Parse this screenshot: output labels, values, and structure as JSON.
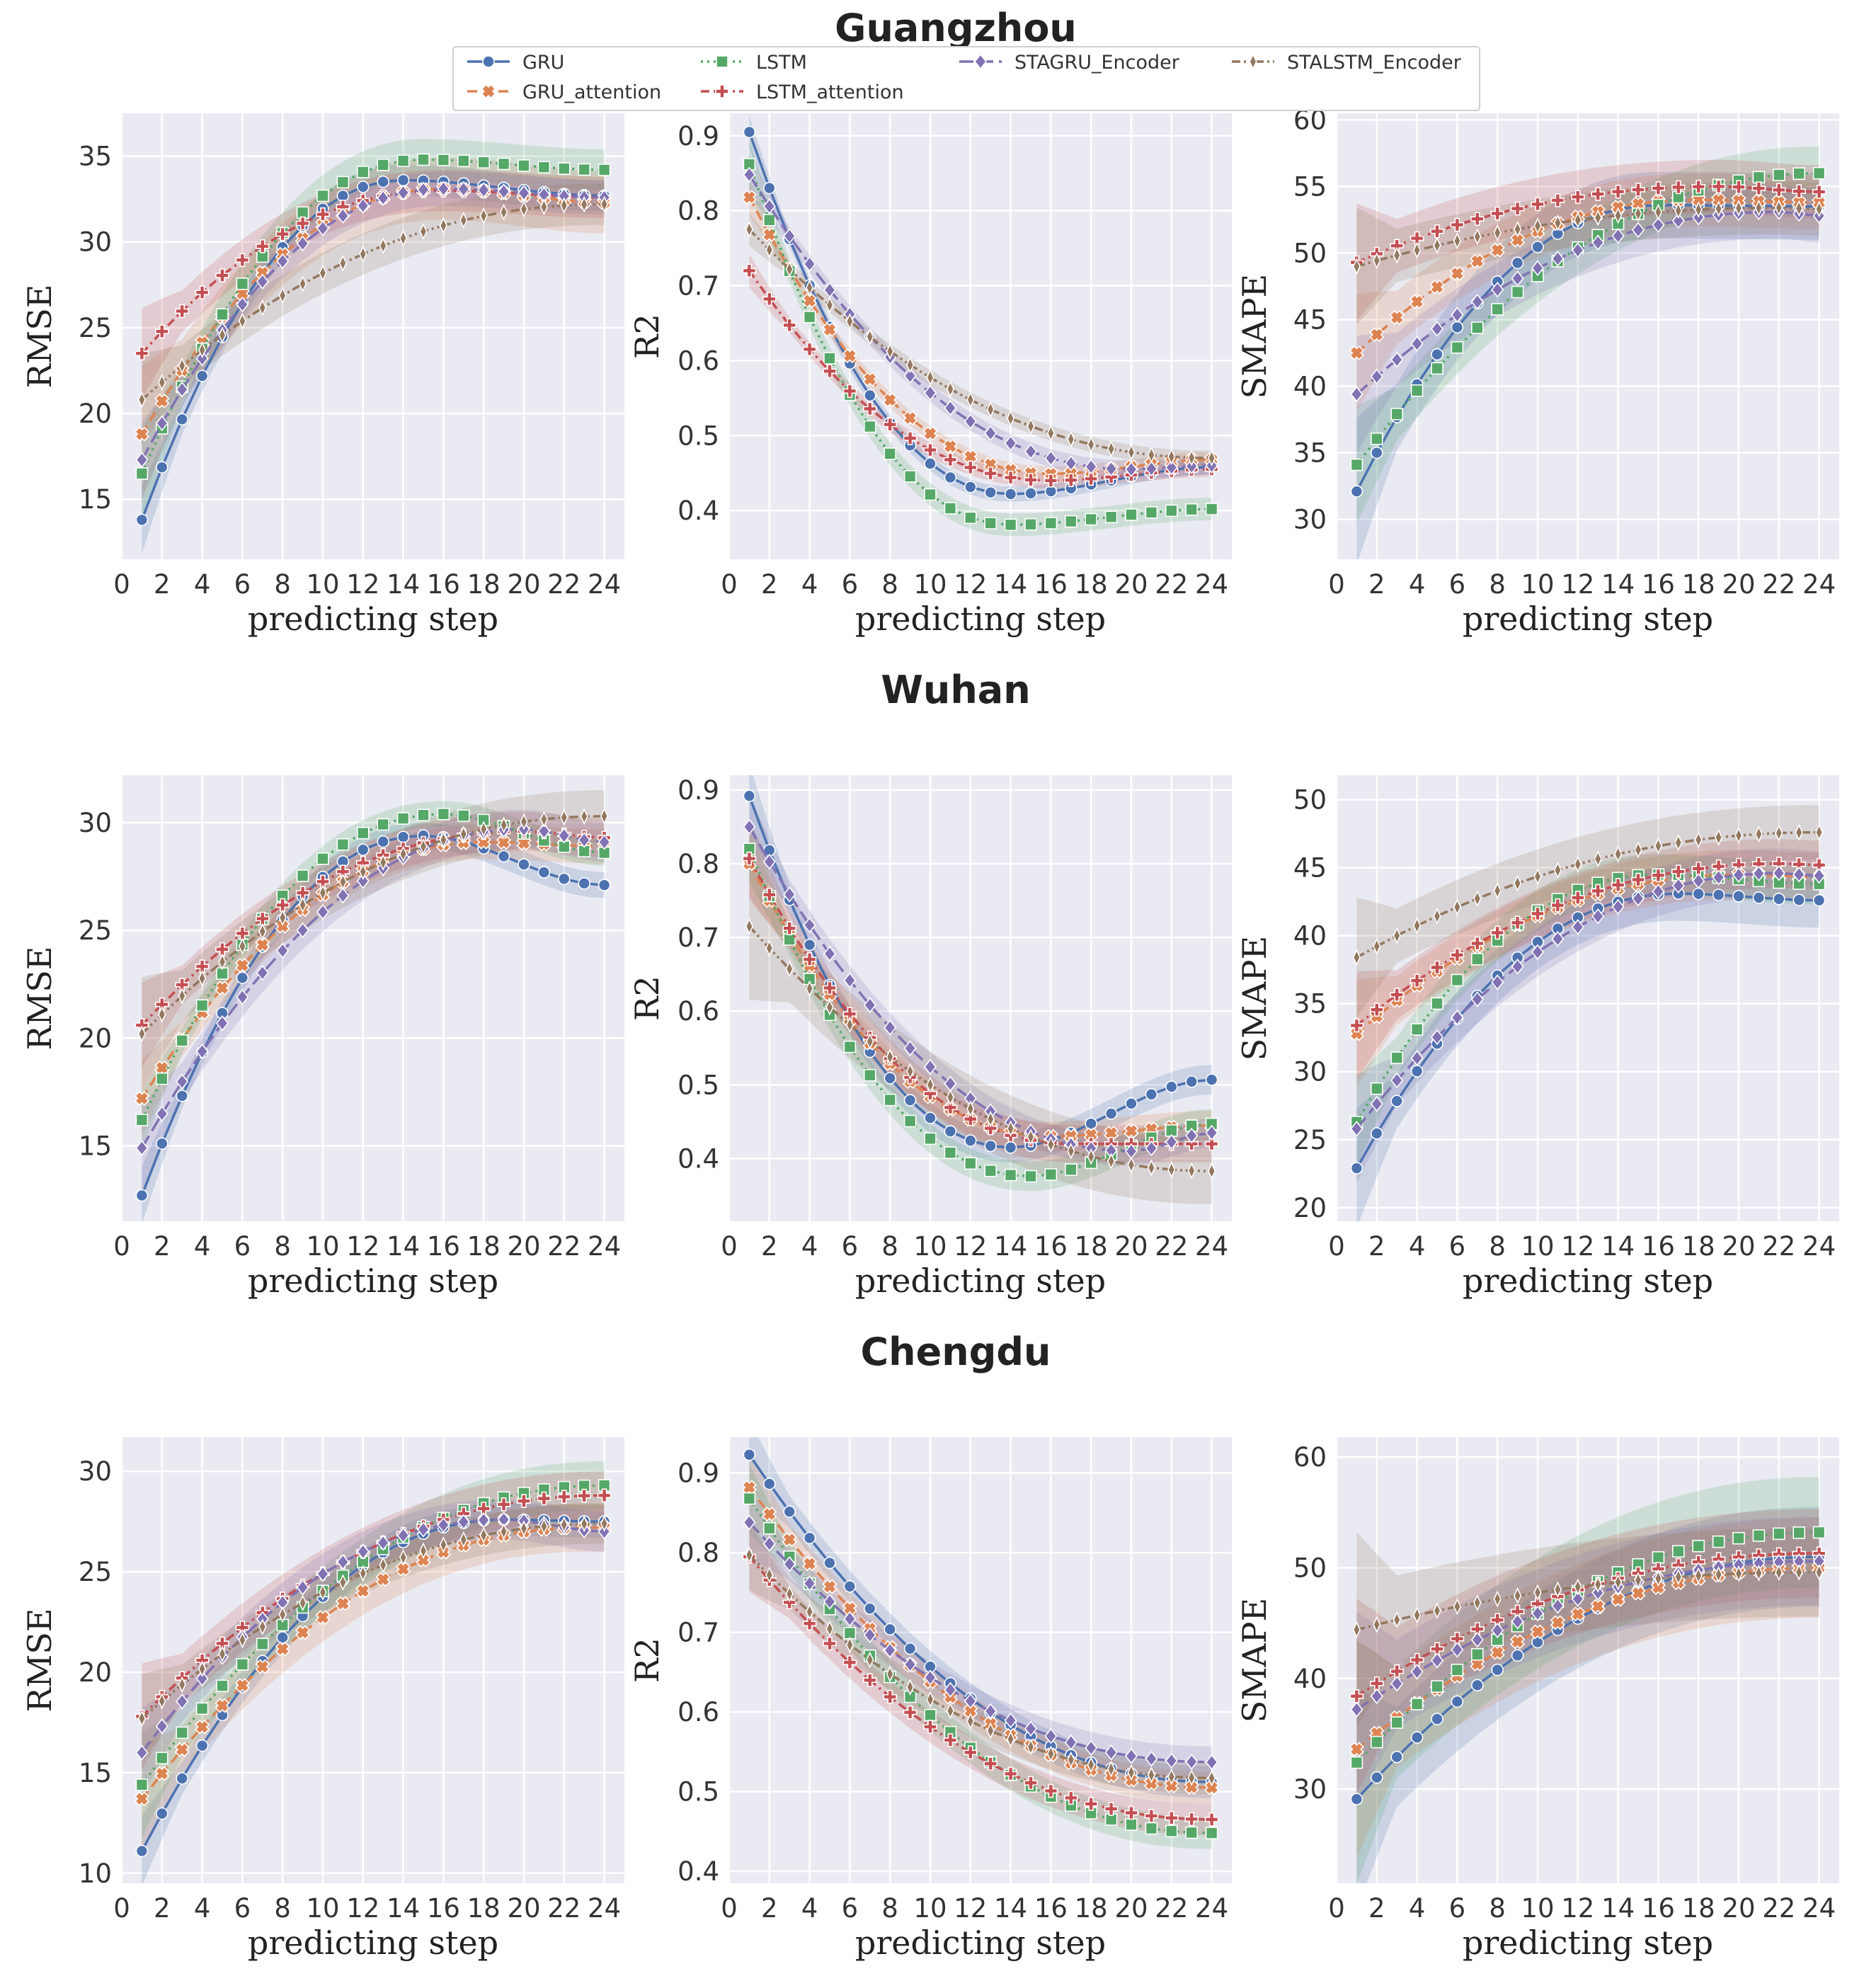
{
  "figure": {
    "city_titles": [
      "Guangzhou",
      "Wuhan",
      "Chengdu"
    ],
    "xlabel": "predicting step",
    "metrics": [
      "RMSE",
      "R2",
      "SMAPE"
    ],
    "x_ticks": [
      "0",
      "2",
      "4",
      "6",
      "8",
      "10",
      "12",
      "14",
      "16",
      "18",
      "20",
      "22",
      "24"
    ]
  },
  "legend": {
    "placement": "top-center",
    "entries": [
      {
        "name": "GRU",
        "color": "#4c72b0",
        "marker": "circle",
        "dash": "solid"
      },
      {
        "name": "GRU_attention",
        "color": "#dd8452",
        "marker": "x",
        "dash": "dashed"
      },
      {
        "name": "LSTM",
        "color": "#55a868",
        "marker": "square",
        "dash": "dotted"
      },
      {
        "name": "LSTM_attention",
        "color": "#c44e52",
        "marker": "plus",
        "dash": "dashdot"
      },
      {
        "name": "STAGRU_Encoder",
        "color": "#8172b3",
        "marker": "diamond",
        "dash": "longdash"
      },
      {
        "name": "STALSTM_Encoder",
        "color": "#937860",
        "marker": "thin-diamond",
        "dash": "dashdotdot"
      }
    ]
  },
  "chart_data": [
    {
      "type": "line",
      "city": "Guangzhou",
      "title": "",
      "xlabel": "predicting step",
      "ylabel": "RMSE",
      "xlim": [
        0,
        25
      ],
      "ylim": [
        11.5,
        37.5
      ],
      "yticks": [
        "15",
        "20",
        "25",
        "30",
        "35"
      ],
      "series": [
        {
          "name": "GRU",
          "start": 13.8,
          "end": 32.7,
          "peak_x": 14,
          "peak_y": 33.6,
          "band": 0.9
        },
        {
          "name": "GRU_attention",
          "start": 18.8,
          "end": 32.3,
          "peak_x": 16,
          "peak_y": 33.1,
          "band": 1.8
        },
        {
          "name": "LSTM",
          "start": 16.5,
          "end": 34.2,
          "peak_x": 15,
          "peak_y": 34.8,
          "band": 1.2
        },
        {
          "name": "LSTM_attention",
          "start": 23.5,
          "end": 32.6,
          "peak_x": 16,
          "peak_y": 33.0,
          "band": 1.2
        },
        {
          "name": "STAGRU_Encoder",
          "start": 17.3,
          "end": 32.6,
          "peak_x": 16,
          "peak_y": 33.1,
          "band": 1.0
        },
        {
          "name": "STALSTM_Encoder",
          "start": 20.8,
          "end": 32.2,
          "peak_x": 24,
          "peak_y": 32.2,
          "band": 1.2
        }
      ]
    },
    {
      "type": "line",
      "city": "Guangzhou",
      "title": "",
      "xlabel": "predicting step",
      "ylabel": "R2",
      "xlim": [
        0,
        25
      ],
      "ylim": [
        0.335,
        0.93
      ],
      "yticks": [
        "0.4",
        "0.5",
        "0.6",
        "0.7",
        "0.8",
        "0.9"
      ],
      "series": [
        {
          "name": "GRU",
          "start": 0.905,
          "end": 0.458,
          "peak_x": 14,
          "peak_y": 0.422,
          "band": 0.01
        },
        {
          "name": "GRU_attention",
          "start": 0.818,
          "end": 0.468,
          "peak_x": 16,
          "peak_y": 0.449,
          "band": 0.01
        },
        {
          "name": "LSTM",
          "start": 0.862,
          "end": 0.402,
          "peak_x": 14,
          "peak_y": 0.381,
          "band": 0.015
        },
        {
          "name": "LSTM_attention",
          "start": 0.72,
          "end": 0.455,
          "peak_x": 16,
          "peak_y": 0.44,
          "band": 0.01
        },
        {
          "name": "STAGRU_Encoder",
          "start": 0.848,
          "end": 0.46,
          "peak_x": 20,
          "peak_y": 0.455,
          "band": 0.012
        },
        {
          "name": "STALSTM_Encoder",
          "start": 0.775,
          "end": 0.47,
          "peak_x": 24,
          "peak_y": 0.47,
          "band": 0.01
        }
      ]
    },
    {
      "type": "line",
      "city": "Guangzhou",
      "title": "",
      "xlabel": "predicting step",
      "ylabel": "SMAPE",
      "xlim": [
        0,
        25
      ],
      "ylim": [
        27,
        60.5
      ],
      "yticks": [
        "30",
        "35",
        "40",
        "45",
        "50",
        "55",
        "60"
      ],
      "series": [
        {
          "name": "GRU",
          "start": 32.1,
          "end": 53.5,
          "peak_x": 16,
          "peak_y": 53.6,
          "band": 2.5
        },
        {
          "name": "GRU_attention",
          "start": 42.5,
          "end": 53.8,
          "peak_x": 18,
          "peak_y": 54.0,
          "band": 2.0
        },
        {
          "name": "LSTM",
          "start": 34.1,
          "end": 56.0,
          "peak_x": 24,
          "peak_y": 56.0,
          "band": 2.0
        },
        {
          "name": "LSTM_attention",
          "start": 49.3,
          "end": 54.6,
          "peak_x": 19,
          "peak_y": 55.0,
          "band": 2.0
        },
        {
          "name": "STAGRU_Encoder",
          "start": 39.4,
          "end": 52.8,
          "peak_x": 22,
          "peak_y": 53.1,
          "band": 2.0
        },
        {
          "name": "STALSTM_Encoder",
          "start": 49.0,
          "end": 53.3,
          "peak_x": 22,
          "peak_y": 53.4,
          "band": 2.0
        }
      ]
    },
    {
      "type": "line",
      "city": "Wuhan",
      "title": "",
      "xlabel": "predicting step",
      "ylabel": "RMSE",
      "xlim": [
        0,
        25
      ],
      "ylim": [
        11.5,
        32.2
      ],
      "yticks": [
        "15",
        "20",
        "25",
        "30"
      ],
      "series": [
        {
          "name": "GRU",
          "start": 12.7,
          "end": 27.1,
          "peak_x": 15,
          "peak_y": 29.4,
          "band": 0.6
        },
        {
          "name": "GRU_attention",
          "start": 17.2,
          "end": 28.9,
          "peak_x": 18,
          "peak_y": 29.1,
          "band": 0.8
        },
        {
          "name": "LSTM",
          "start": 16.2,
          "end": 28.6,
          "peak_x": 16,
          "peak_y": 30.4,
          "band": 0.6
        },
        {
          "name": "LSTM_attention",
          "start": 20.6,
          "end": 29.3,
          "peak_x": 20,
          "peak_y": 29.6,
          "band": 0.9
        },
        {
          "name": "STAGRU_Encoder",
          "start": 14.9,
          "end": 29.1,
          "peak_x": 20,
          "peak_y": 29.7,
          "band": 0.9
        },
        {
          "name": "STALSTM_Encoder",
          "start": 20.2,
          "end": 30.3,
          "peak_x": 24,
          "peak_y": 30.3,
          "band": 1.2
        }
      ]
    },
    {
      "type": "line",
      "city": "Wuhan",
      "title": "",
      "xlabel": "predicting step",
      "ylabel": "R2",
      "xlim": [
        0,
        25
      ],
      "ylim": [
        0.315,
        0.92
      ],
      "yticks": [
        "0.4",
        "0.5",
        "0.6",
        "0.7",
        "0.8",
        "0.9"
      ],
      "series": [
        {
          "name": "GRU",
          "start": 0.892,
          "end": 0.507,
          "peak_x": 14,
          "peak_y": 0.415,
          "band": 0.02
        },
        {
          "name": "GRU_attention",
          "start": 0.8,
          "end": 0.445,
          "peak_x": 16,
          "peak_y": 0.43,
          "band": 0.02
        },
        {
          "name": "LSTM",
          "start": 0.82,
          "end": 0.447,
          "peak_x": 15,
          "peak_y": 0.376,
          "band": 0.02
        },
        {
          "name": "LSTM_attention",
          "start": 0.807,
          "end": 0.42,
          "peak_x": 17,
          "peak_y": 0.42,
          "band": 0.025
        },
        {
          "name": "STAGRU_Encoder",
          "start": 0.85,
          "end": 0.435,
          "peak_x": 20,
          "peak_y": 0.41,
          "band": 0.02
        },
        {
          "name": "STALSTM_Encoder",
          "start": 0.715,
          "end": 0.383,
          "peak_x": 24,
          "peak_y": 0.383,
          "band": 0.045
        }
      ]
    },
    {
      "type": "line",
      "city": "Wuhan",
      "title": "",
      "xlabel": "predicting step",
      "ylabel": "SMAPE",
      "xlim": [
        0,
        25
      ],
      "ylim": [
        19,
        51.8
      ],
      "yticks": [
        "20",
        "25",
        "30",
        "35",
        "40",
        "45",
        "50"
      ],
      "series": [
        {
          "name": "GRU",
          "start": 22.9,
          "end": 42.6,
          "peak_x": 17,
          "peak_y": 43.1,
          "band": 2.0
        },
        {
          "name": "GRU_attention",
          "start": 32.8,
          "end": 44.3,
          "peak_x": 20,
          "peak_y": 44.5,
          "band": 1.8
        },
        {
          "name": "LSTM",
          "start": 26.3,
          "end": 43.8,
          "peak_x": 16,
          "peak_y": 44.5,
          "band": 1.5
        },
        {
          "name": "LSTM_attention",
          "start": 33.4,
          "end": 45.2,
          "peak_x": 22,
          "peak_y": 45.3,
          "band": 1.8
        },
        {
          "name": "STAGRU_Encoder",
          "start": 25.8,
          "end": 44.4,
          "peak_x": 22,
          "peak_y": 44.6,
          "band": 1.8
        },
        {
          "name": "STALSTM_Encoder",
          "start": 38.4,
          "end": 47.6,
          "peak_x": 24,
          "peak_y": 47.6,
          "band": 2.0
        }
      ]
    },
    {
      "type": "line",
      "city": "Chengdu",
      "title": "",
      "xlabel": "predicting step",
      "ylabel": "RMSE",
      "xlim": [
        0,
        25
      ],
      "ylim": [
        9.5,
        31.7
      ],
      "yticks": [
        "10",
        "15",
        "20",
        "25",
        "30"
      ],
      "series": [
        {
          "name": "GRU",
          "start": 11.1,
          "end": 27.5,
          "peak_x": 19,
          "peak_y": 27.6,
          "band": 0.8
        },
        {
          "name": "GRU_attention",
          "start": 13.7,
          "end": 27.2,
          "peak_x": 23,
          "peak_y": 27.2,
          "band": 1.2
        },
        {
          "name": "LSTM",
          "start": 14.4,
          "end": 29.3,
          "peak_x": 24,
          "peak_y": 29.3,
          "band": 1.2
        },
        {
          "name": "LSTM_attention",
          "start": 17.8,
          "end": 28.8,
          "peak_x": 24,
          "peak_y": 28.8,
          "band": 1.2
        },
        {
          "name": "STAGRU_Encoder",
          "start": 16.0,
          "end": 27.0,
          "peak_x": 19,
          "peak_y": 27.6,
          "band": 1.0
        },
        {
          "name": "STALSTM_Encoder",
          "start": 17.7,
          "end": 27.4,
          "peak_x": 24,
          "peak_y": 27.4,
          "band": 1.0
        }
      ]
    },
    {
      "type": "line",
      "city": "Chengdu",
      "title": "",
      "xlabel": "predicting step",
      "ylabel": "R2",
      "xlim": [
        0,
        25
      ],
      "ylim": [
        0.385,
        0.945
      ],
      "yticks": [
        "0.4",
        "0.5",
        "0.6",
        "0.7",
        "0.8",
        "0.9"
      ],
      "series": [
        {
          "name": "GRU",
          "start": 0.923,
          "end": 0.512,
          "peak_x": 24,
          "peak_y": 0.512,
          "band": 0.02
        },
        {
          "name": "GRU_attention",
          "start": 0.882,
          "end": 0.505,
          "peak_x": 24,
          "peak_y": 0.505,
          "band": 0.02
        },
        {
          "name": "LSTM",
          "start": 0.868,
          "end": 0.448,
          "peak_x": 24,
          "peak_y": 0.448,
          "band": 0.02
        },
        {
          "name": "LSTM_attention",
          "start": 0.795,
          "end": 0.465,
          "peak_x": 24,
          "peak_y": 0.465,
          "band": 0.02
        },
        {
          "name": "STAGRU_Encoder",
          "start": 0.838,
          "end": 0.537,
          "peak_x": 24,
          "peak_y": 0.537,
          "band": 0.02
        },
        {
          "name": "STALSTM_Encoder",
          "start": 0.797,
          "end": 0.517,
          "peak_x": 24,
          "peak_y": 0.517,
          "band": 0.02
        }
      ]
    },
    {
      "type": "line",
      "city": "Chengdu",
      "title": "",
      "xlabel": "predicting step",
      "ylabel": "SMAPE",
      "xlim": [
        0,
        25
      ],
      "ylim": [
        21.5,
        61.8
      ],
      "yticks": [
        "30",
        "40",
        "50",
        "60"
      ],
      "series": [
        {
          "name": "GRU",
          "start": 29.1,
          "end": 51.0,
          "peak_x": 24,
          "peak_y": 51.0,
          "band": 4.5
        },
        {
          "name": "GRU_attention",
          "start": 33.6,
          "end": 50.0,
          "peak_x": 24,
          "peak_y": 50.0,
          "band": 4.5
        },
        {
          "name": "LSTM",
          "start": 32.4,
          "end": 53.2,
          "peak_x": 24,
          "peak_y": 53.2,
          "band": 5.0
        },
        {
          "name": "LSTM_attention",
          "start": 38.4,
          "end": 51.3,
          "peak_x": 24,
          "peak_y": 51.3,
          "band": 4.0
        },
        {
          "name": "STAGRU_Encoder",
          "start": 37.2,
          "end": 50.6,
          "peak_x": 24,
          "peak_y": 50.6,
          "band": 4.0
        },
        {
          "name": "STALSTM_Encoder",
          "start": 44.4,
          "end": 49.6,
          "peak_x": 24,
          "peak_y": 49.6,
          "band": 4.0
        }
      ]
    }
  ]
}
